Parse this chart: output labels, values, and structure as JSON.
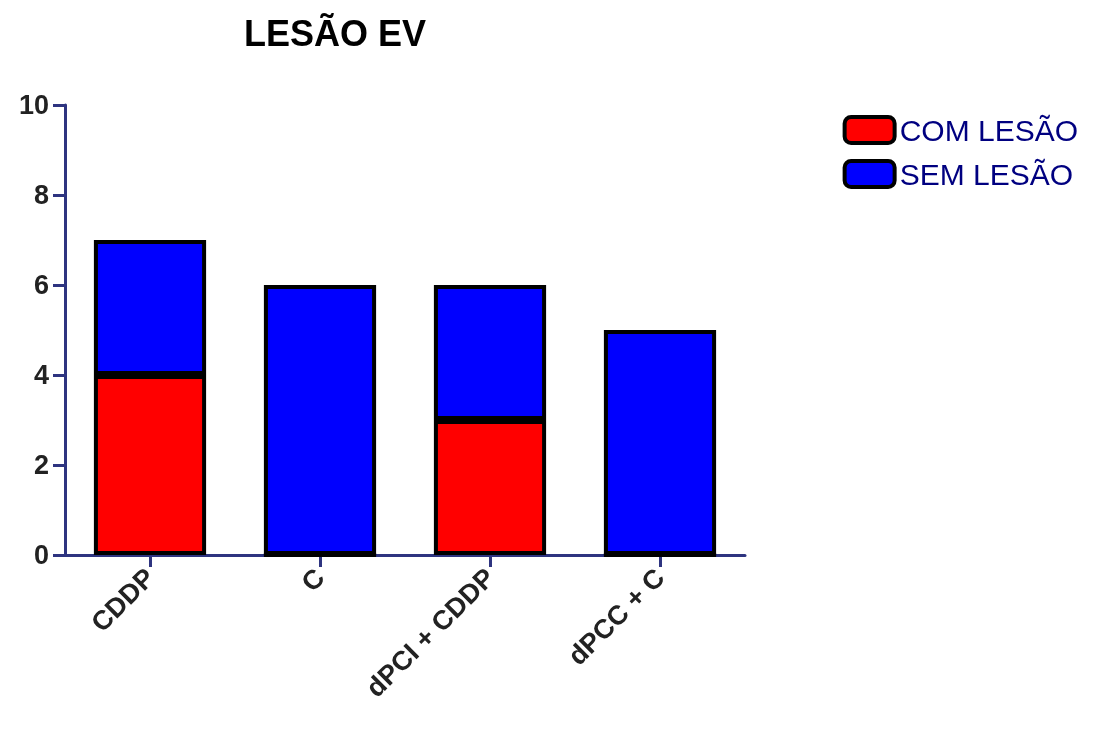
{
  "chart_data": {
    "type": "bar",
    "title": "LESÃO EV",
    "stacked": true,
    "categories": [
      "CDDP",
      "C",
      "dPCI + CDDP",
      "dPCC + C"
    ],
    "series": [
      {
        "name": "COM LESÃO",
        "color": "#ff0000",
        "values": [
          4,
          0,
          3,
          0
        ]
      },
      {
        "name": "SEM LESÃO",
        "color": "#0000ff",
        "values": [
          3,
          6,
          3,
          5
        ]
      }
    ],
    "ylim": [
      0,
      10
    ],
    "yticks": [
      0,
      2,
      4,
      6,
      8,
      10
    ],
    "grid": false,
    "legend": "top right"
  }
}
